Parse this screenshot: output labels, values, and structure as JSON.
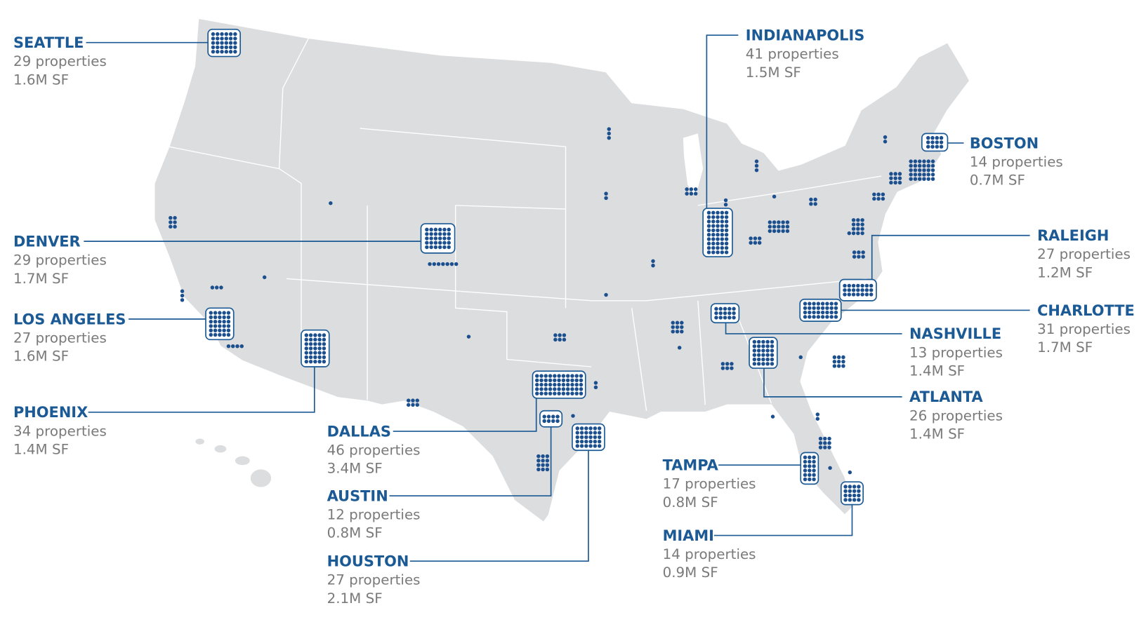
{
  "markets": [
    {
      "name": "SEATTLE",
      "properties": "29 properties",
      "area": "1.6M SF"
    },
    {
      "name": "DENVER",
      "properties": "29 properties",
      "area": "1.7M SF"
    },
    {
      "name": "LOS ANGELES",
      "properties": "27 properties",
      "area": "1.6M SF"
    },
    {
      "name": "PHOENIX",
      "properties": "34 properties",
      "area": "1.4M SF"
    },
    {
      "name": "DALLAS",
      "properties": "46 properties",
      "area": "3.4M SF"
    },
    {
      "name": "AUSTIN",
      "properties": "12 properties",
      "area": "0.8M SF"
    },
    {
      "name": "HOUSTON",
      "properties": "27 properties",
      "area": "2.1M SF"
    },
    {
      "name": "TAMPA",
      "properties": "17 properties",
      "area": "0.8M SF"
    },
    {
      "name": "MIAMI",
      "properties": "14 properties",
      "area": "0.9M SF"
    },
    {
      "name": "INDIANAPOLIS",
      "properties": "41 properties",
      "area": "1.5M SF"
    },
    {
      "name": "BOSTON",
      "properties": "14 properties",
      "area": "0.7M SF"
    },
    {
      "name": "RALEIGH",
      "properties": "27 properties",
      "area": "1.2M SF"
    },
    {
      "name": "CHARLOTTE",
      "properties": "31 properties",
      "area": "1.7M SF"
    },
    {
      "name": "NASHVILLE",
      "properties": "13 properties",
      "area": "1.4M SF"
    },
    {
      "name": "ATLANTA",
      "properties": "26 properties",
      "area": "1.4M SF"
    }
  ]
}
